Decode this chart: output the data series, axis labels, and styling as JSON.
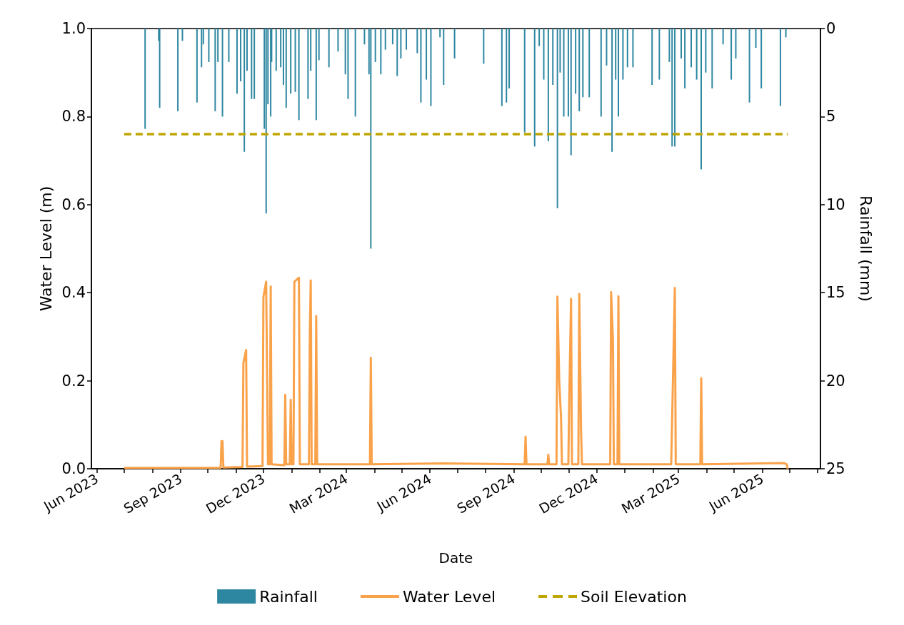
{
  "chart_data": {
    "type": "line",
    "xlabel": "Date",
    "ylabel": "Water Level (m)",
    "y2label": "Rainfall (mm)",
    "xlim": [
      "2023-05-26",
      "2025-08-04"
    ],
    "xticks": [
      {
        "value": "2023-06-01",
        "label": "Jun 2023"
      },
      {
        "value": "2023-07-01",
        "label": null
      },
      {
        "value": "2023-08-01",
        "label": null
      },
      {
        "value": "2023-09-01",
        "label": "Sep 2023"
      },
      {
        "value": "2023-10-01",
        "label": null
      },
      {
        "value": "2023-11-01",
        "label": null
      },
      {
        "value": "2023-12-01",
        "label": "Dec 2023"
      },
      {
        "value": "2024-01-01",
        "label": null
      },
      {
        "value": "2024-02-01",
        "label": null
      },
      {
        "value": "2024-03-01",
        "label": "Mar 2024"
      },
      {
        "value": "2024-04-01",
        "label": null
      },
      {
        "value": "2024-05-01",
        "label": null
      },
      {
        "value": "2024-06-01",
        "label": "Jun 2024"
      },
      {
        "value": "2024-07-01",
        "label": null
      },
      {
        "value": "2024-08-01",
        "label": null
      },
      {
        "value": "2024-09-01",
        "label": "Sep 2024"
      },
      {
        "value": "2024-10-01",
        "label": null
      },
      {
        "value": "2024-11-01",
        "label": null
      },
      {
        "value": "2024-12-01",
        "label": "Dec 2024"
      },
      {
        "value": "2025-01-01",
        "label": null
      },
      {
        "value": "2025-02-01",
        "label": null
      },
      {
        "value": "2025-03-01",
        "label": "Mar 2025"
      },
      {
        "value": "2025-04-01",
        "label": null
      },
      {
        "value": "2025-05-01",
        "label": null
      },
      {
        "value": "2025-06-01",
        "label": "Jun 2025"
      },
      {
        "value": "2025-07-01",
        "label": null
      },
      {
        "value": "2025-08-01",
        "label": null
      }
    ],
    "ylim": [
      0,
      1
    ],
    "yticks": [
      {
        "value": 0,
        "label": "0.0"
      },
      {
        "value": 0.2,
        "label": "0.2"
      },
      {
        "value": 0.4,
        "label": "0.4"
      },
      {
        "value": 0.6,
        "label": "0.6"
      },
      {
        "value": 0.8,
        "label": "0.8"
      },
      {
        "value": 1,
        "label": "1.0"
      }
    ],
    "y2lim": [
      25,
      0
    ],
    "y2ticks": [
      0,
      5,
      10,
      15,
      20,
      25
    ],
    "grid": false,
    "legend": "bottom",
    "series": [
      {
        "name": "Rainfall",
        "type": "bar",
        "axis": "y2",
        "color": "#2e87a1",
        "x": [
          "2023-07-24",
          "2023-08-08",
          "2023-08-09",
          "2023-08-29",
          "2023-09-03",
          "2023-09-19",
          "2023-09-24",
          "2023-09-26",
          "2023-10-02",
          "2023-10-09",
          "2023-10-12",
          "2023-10-17",
          "2023-10-24",
          "2023-11-02",
          "2023-11-06",
          "2023-11-10",
          "2023-11-13",
          "2023-11-18",
          "2023-11-21",
          "2023-12-02",
          "2023-12-04",
          "2023-12-06",
          "2023-12-09",
          "2023-12-10",
          "2023-12-15",
          "2023-12-20",
          "2023-12-23",
          "2023-12-26",
          "2023-12-31",
          "2024-01-05",
          "2024-01-09",
          "2024-01-19",
          "2024-01-22",
          "2024-01-28",
          "2024-01-31",
          "2024-02-11",
          "2024-02-21",
          "2024-02-29",
          "2024-03-03",
          "2024-03-11",
          "2024-03-21",
          "2024-03-26",
          "2024-03-28",
          "2024-04-02",
          "2024-04-08",
          "2024-04-13",
          "2024-04-21",
          "2024-04-26",
          "2024-04-30",
          "2024-05-06",
          "2024-05-18",
          "2024-05-22",
          "2024-05-28",
          "2024-06-02",
          "2024-06-12",
          "2024-06-16",
          "2024-06-28",
          "2024-07-30",
          "2024-08-19",
          "2024-08-24",
          "2024-08-27",
          "2024-09-13",
          "2024-09-24",
          "2024-09-29",
          "2024-10-04",
          "2024-10-09",
          "2024-10-14",
          "2024-10-19",
          "2024-10-22",
          "2024-10-26",
          "2024-10-31",
          "2024-11-03",
          "2024-11-08",
          "2024-11-12",
          "2024-11-16",
          "2024-11-23",
          "2024-12-06",
          "2024-12-12",
          "2024-12-18",
          "2024-12-22",
          "2024-12-25",
          "2024-12-30",
          "2025-01-04",
          "2025-01-10",
          "2025-01-31",
          "2025-02-08",
          "2025-02-19",
          "2025-02-22",
          "2025-02-25",
          "2025-03-04",
          "2025-03-08",
          "2025-03-15",
          "2025-03-21",
          "2025-03-26",
          "2025-03-31",
          "2025-04-07",
          "2025-04-19",
          "2025-04-28",
          "2025-05-03",
          "2025-05-18",
          "2025-05-25",
          "2025-05-31",
          "2025-06-21",
          "2025-06-27"
        ],
        "values": [
          5.7,
          0.7,
          4.5,
          4.7,
          0.7,
          4.2,
          2.2,
          0.9,
          1.9,
          4.7,
          1.9,
          5.0,
          1.9,
          3.7,
          3.0,
          7.0,
          2.4,
          4.0,
          4.0,
          5.7,
          10.5,
          4.3,
          5.0,
          1.9,
          2.4,
          2.2,
          3.2,
          4.5,
          3.7,
          3.6,
          5.2,
          4.0,
          2.4,
          5.2,
          1.8,
          2.2,
          1.3,
          2.6,
          4.0,
          5.0,
          0.9,
          2.6,
          12.5,
          1.9,
          2.6,
          1.2,
          0.9,
          2.7,
          1.7,
          1.2,
          1.4,
          4.2,
          2.9,
          4.4,
          0.5,
          3.2,
          1.7,
          2.0,
          4.4,
          4.2,
          3.4,
          5.9,
          6.7,
          1.0,
          2.9,
          6.4,
          3.2,
          10.2,
          2.5,
          5.0,
          5.0,
          7.2,
          3.7,
          4.7,
          3.9,
          3.9,
          5.0,
          2.1,
          7.0,
          2.9,
          5.0,
          2.9,
          2.2,
          2.2,
          3.2,
          2.9,
          1.9,
          6.7,
          6.7,
          1.7,
          3.4,
          2.2,
          2.9,
          8.0,
          2.5,
          3.4,
          0.9,
          2.9,
          1.7,
          4.2,
          1.1,
          3.4,
          4.4,
          0.5
        ]
      },
      {
        "name": "Water Level",
        "color": "#f9a24a",
        "line_style": "solid",
        "x": [
          "2023-07-01",
          "2023-10-15",
          "2023-10-16",
          "2023-10-17",
          "2023-10-18",
          "2023-11-08",
          "2023-11-09",
          "2023-11-12",
          "2023-11-13",
          "2023-11-30",
          "2023-12-01",
          "2023-12-04",
          "2023-12-06",
          "2023-12-08",
          "2023-12-09",
          "2023-12-10",
          "2023-12-24",
          "2023-12-25",
          "2023-12-26",
          "2023-12-30",
          "2023-12-31",
          "2024-01-01",
          "2024-01-03",
          "2024-01-04",
          "2024-01-09",
          "2024-01-10",
          "2024-01-20",
          "2024-01-21",
          "2024-01-22",
          "2024-01-23",
          "2024-01-27",
          "2024-01-28",
          "2024-01-29",
          "2024-03-27",
          "2024-03-28",
          "2024-03-29",
          "2024-06-15",
          "2024-09-13",
          "2024-09-14",
          "2024-09-15",
          "2024-10-08",
          "2024-10-09",
          "2024-10-10",
          "2024-10-18",
          "2024-10-19",
          "2024-10-21",
          "2024-10-23",
          "2024-10-24",
          "2024-10-31",
          "2024-11-01",
          "2024-11-03",
          "2024-11-04",
          "2024-11-11",
          "2024-11-12",
          "2024-11-14",
          "2024-11-15",
          "2024-12-16",
          "2024-12-17",
          "2024-12-19",
          "2024-12-20",
          "2024-12-24",
          "2024-12-25",
          "2024-12-26",
          "2025-02-21",
          "2025-02-22",
          "2025-02-25",
          "2025-02-26",
          "2025-03-25",
          "2025-03-26",
          "2025-03-27",
          "2025-06-25",
          "2025-06-28",
          "2025-06-29"
        ],
        "values": [
          0.002,
          0.002,
          0.063,
          0.063,
          0.003,
          0.004,
          0.24,
          0.27,
          0.005,
          0.006,
          0.39,
          0.425,
          0.01,
          0.01,
          0.414,
          0.01,
          0.008,
          0.168,
          0.01,
          0.01,
          0.157,
          0.01,
          0.01,
          0.425,
          0.434,
          0.01,
          0.01,
          0.31,
          0.428,
          0.01,
          0.01,
          0.347,
          0.01,
          0.01,
          0.252,
          0.01,
          0.012,
          0.01,
          0.073,
          0.01,
          0.01,
          0.032,
          0.01,
          0.01,
          0.391,
          0.2,
          0.115,
          0.01,
          0.01,
          0.156,
          0.386,
          0.01,
          0.01,
          0.397,
          0.085,
          0.01,
          0.01,
          0.401,
          0.294,
          0.01,
          0.01,
          0.392,
          0.01,
          0.01,
          0.107,
          0.411,
          0.01,
          0.01,
          0.206,
          0.01,
          0.013,
          0.01,
          0
        ]
      },
      {
        "name": "Soil Elevation",
        "type": "line",
        "color": "#bfa500",
        "line_style": "dashed",
        "x": [
          "2023-07-01",
          "2025-06-29"
        ],
        "values": [
          0.76,
          0.76
        ]
      }
    ]
  }
}
